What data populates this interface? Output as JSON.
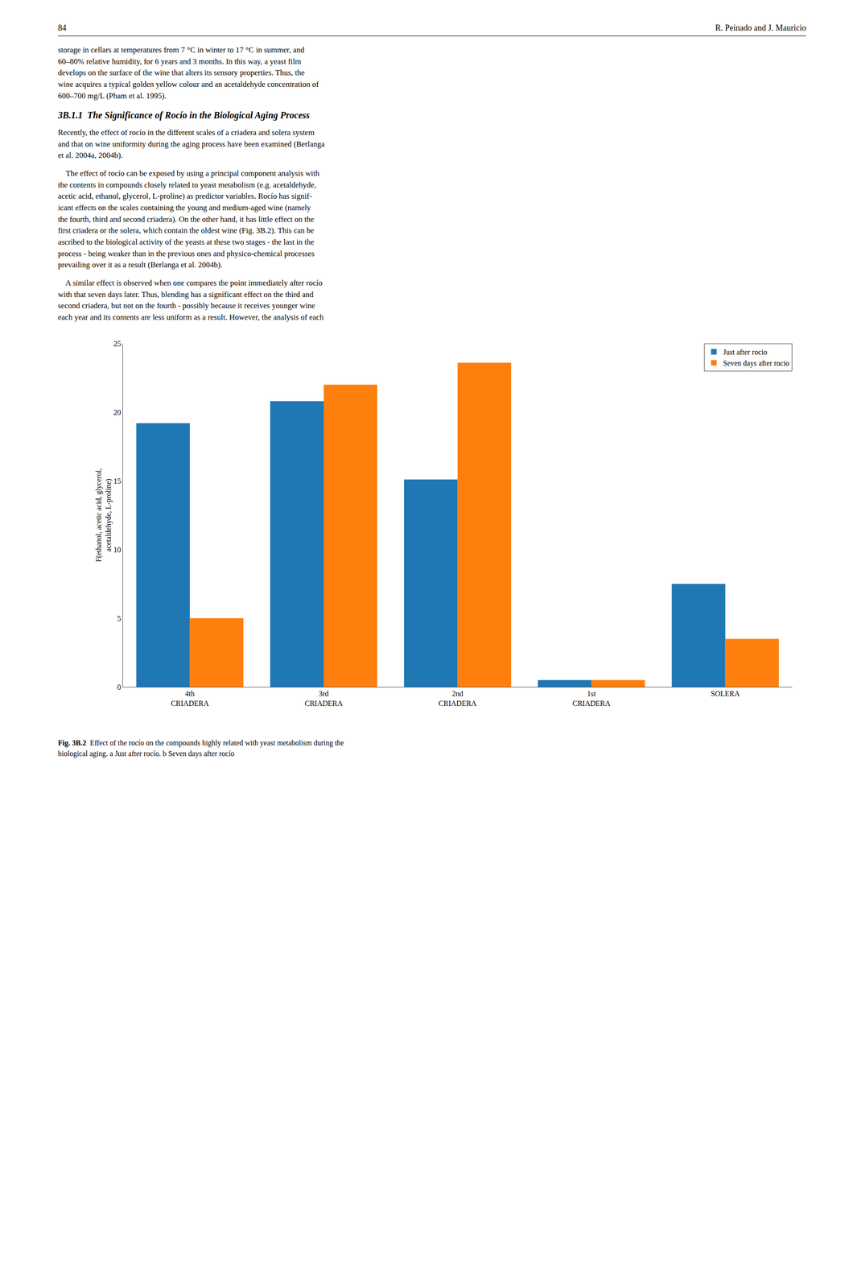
{
  "chart_data": {
    "type": "bar",
    "categories": [
      "4th\nCRIADERA",
      "3rd\nCRIADERA",
      "2nd\nCRIADERA",
      "1st\nCRIADERA",
      "SOLERA"
    ],
    "series": [
      {
        "name": "Just after rocio",
        "values": [
          19.2,
          20.8,
          15.1,
          0.5,
          7.5
        ]
      },
      {
        "name": "Seven days after rocio",
        "values": [
          5.0,
          22.0,
          23.6,
          0.5,
          3.5
        ]
      }
    ],
    "y_label": "F(ethanol, acetic acid, glycerol,\nacetaldehyde, L-proline)",
    "ylim": [
      0,
      25
    ],
    "yticks": [
      0,
      5,
      10,
      15,
      20,
      25
    ],
    "grid": false,
    "legend": "upper right",
    "annotations": [
      "84",
      "R. Peinado and J. Mauricio",
      "storage in cellars at temperatures from 7 °C in winter to 17 °C in summer, and\n60–80% relative humidity, for 6 years and 3 months. In this way, a yeast film\ndevelops on the surface of the wine that alters its sensory properties. Thus, the\nwine acquires a typical golden yellow colour and an acetaldehyde concentration of\n600–700 mg/L (Pham et al. 1995).",
      "3B.1.1  The Significance of Rocío in the Biological Aging Process",
      "Recently, the effect of rocío in the different scales of a criadera and solera system\nand that on wine uniformity during the aging process have been examined (Berlanga\net al. 2004a, 2004b).",
      "    The effect of rocío can be exposed by using a principal component analysis with\nthe contents in compounds closely related to yeast metabolism (e.g. acetaldehyde,\nacetic acid, ethanol, glycerol, L-proline) as predictor variables. Rocío has signif-\nicant effects on the scales containing the young and medium-aged wine (namely\nthe fourth, third and second criadera). On the other hand, it has little effect on the\nfirst criadera or the solera, which contain the oldest wine (Fig. 3B.2). This can be\nascribed to the biological activity of the yeasts at these two stages - the last in the\nprocess - being weaker than in the previous ones and physico-chemical processes\nprevailing over it as a result (Berlanga et al. 2004b).",
      "    A similar effect is observed when one compares the point immediately after rocío\nwith that seven days later. Thus, blending has a significant effect on the third and\nsecond criadera, but not on the fourth - possibly because it receives younger wine\neach year and its contents are less uniform as a result. However, the analysis of each",
      "Fig. 3B.2",
      "Effect of the rocío on the compounds highly related with yeast metabolism during the\nbiological aging. a Just after rocío. b Seven days after rocío"
    ]
  }
}
